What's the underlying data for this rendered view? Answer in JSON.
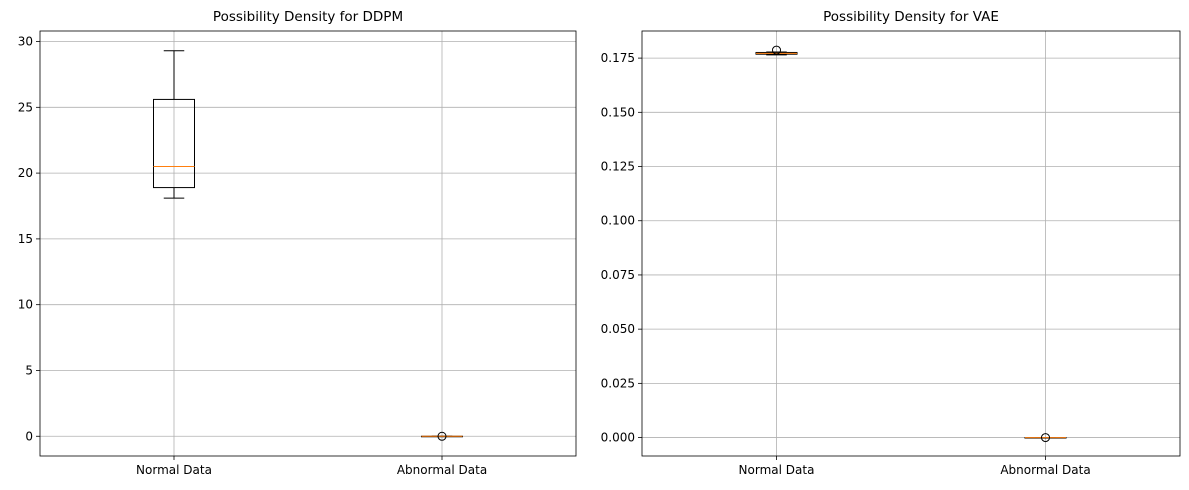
{
  "chart_data": [
    {
      "type": "box",
      "title": "Possibility Density for DDPM",
      "categories": [
        "Normal Data",
        "Abnormal Data"
      ],
      "ylim": [
        -1.5,
        30.8
      ],
      "yticks": [
        0,
        5,
        10,
        15,
        20,
        25,
        30
      ],
      "ytick_labels": [
        "0",
        "5",
        "10",
        "15",
        "20",
        "25",
        "30"
      ],
      "grid": true,
      "boxes": [
        {
          "whislo": 18.1,
          "q1": 18.9,
          "med": 20.5,
          "q3": 25.6,
          "whishi": 29.3,
          "fliers": []
        },
        {
          "whislo": 0.0,
          "q1": 0.0,
          "med": 0.0,
          "q3": 0.0,
          "whishi": 0.0,
          "fliers": [
            0.0
          ]
        }
      ]
    },
    {
      "type": "box",
      "title": "Possibility Density for VAE",
      "categories": [
        "Normal Data",
        "Abnormal Data"
      ],
      "ylim": [
        -0.0085,
        0.1875
      ],
      "yticks": [
        0.0,
        0.025,
        0.05,
        0.075,
        0.1,
        0.125,
        0.15,
        0.175
      ],
      "ytick_labels": [
        "0.000",
        "0.025",
        "0.050",
        "0.075",
        "0.100",
        "0.125",
        "0.150",
        "0.175"
      ],
      "grid": true,
      "boxes": [
        {
          "whislo": 0.1765,
          "q1": 0.1768,
          "med": 0.1772,
          "q3": 0.1776,
          "whishi": 0.1778,
          "fliers": [
            0.1787
          ]
        },
        {
          "whislo": 0.0,
          "q1": 0.0,
          "med": 0.0,
          "q3": 0.0,
          "whishi": 0.0,
          "fliers": [
            0.0
          ]
        }
      ]
    }
  ]
}
